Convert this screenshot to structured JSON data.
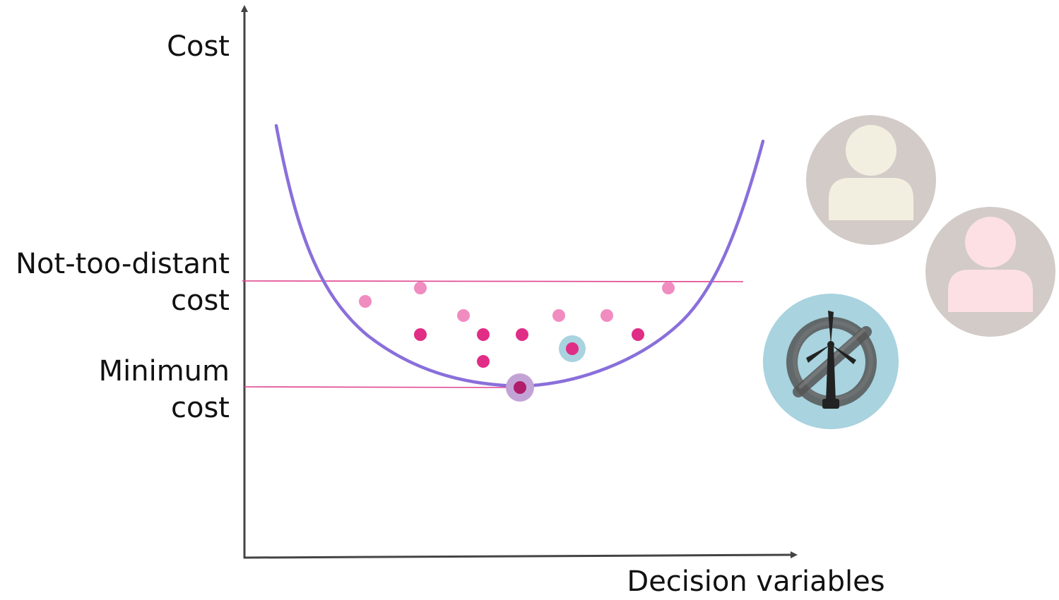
{
  "axes": {
    "y_label": "Cost",
    "x_label": "Decision variables"
  },
  "levels": {
    "near_optimal": {
      "line1": "Not-too-distant",
      "line2": "cost"
    },
    "minimum": {
      "line1": "Minimum",
      "line2": "cost"
    }
  },
  "colors": {
    "curve": "#8a6fdb",
    "threshold_line": "#e0458f",
    "point_light": "#f08cc0",
    "point_dark": "#e02d85",
    "minimum_point": "#b01d6a",
    "minimum_halo": "#c3a3d6",
    "selected_halo": "#a8d3df",
    "avatar_bg": "#d2cbc7",
    "avatar_person_1": "#f3efe0",
    "avatar_person_2": "#fde0e3",
    "wind_badge_bg": "#a8d3df",
    "axis": "#444444"
  },
  "icons": {
    "stakeholder_1": "person-avatar-icon",
    "stakeholder_2": "person-avatar-icon",
    "wind_opposition": "no-wind-turbine-icon"
  }
}
